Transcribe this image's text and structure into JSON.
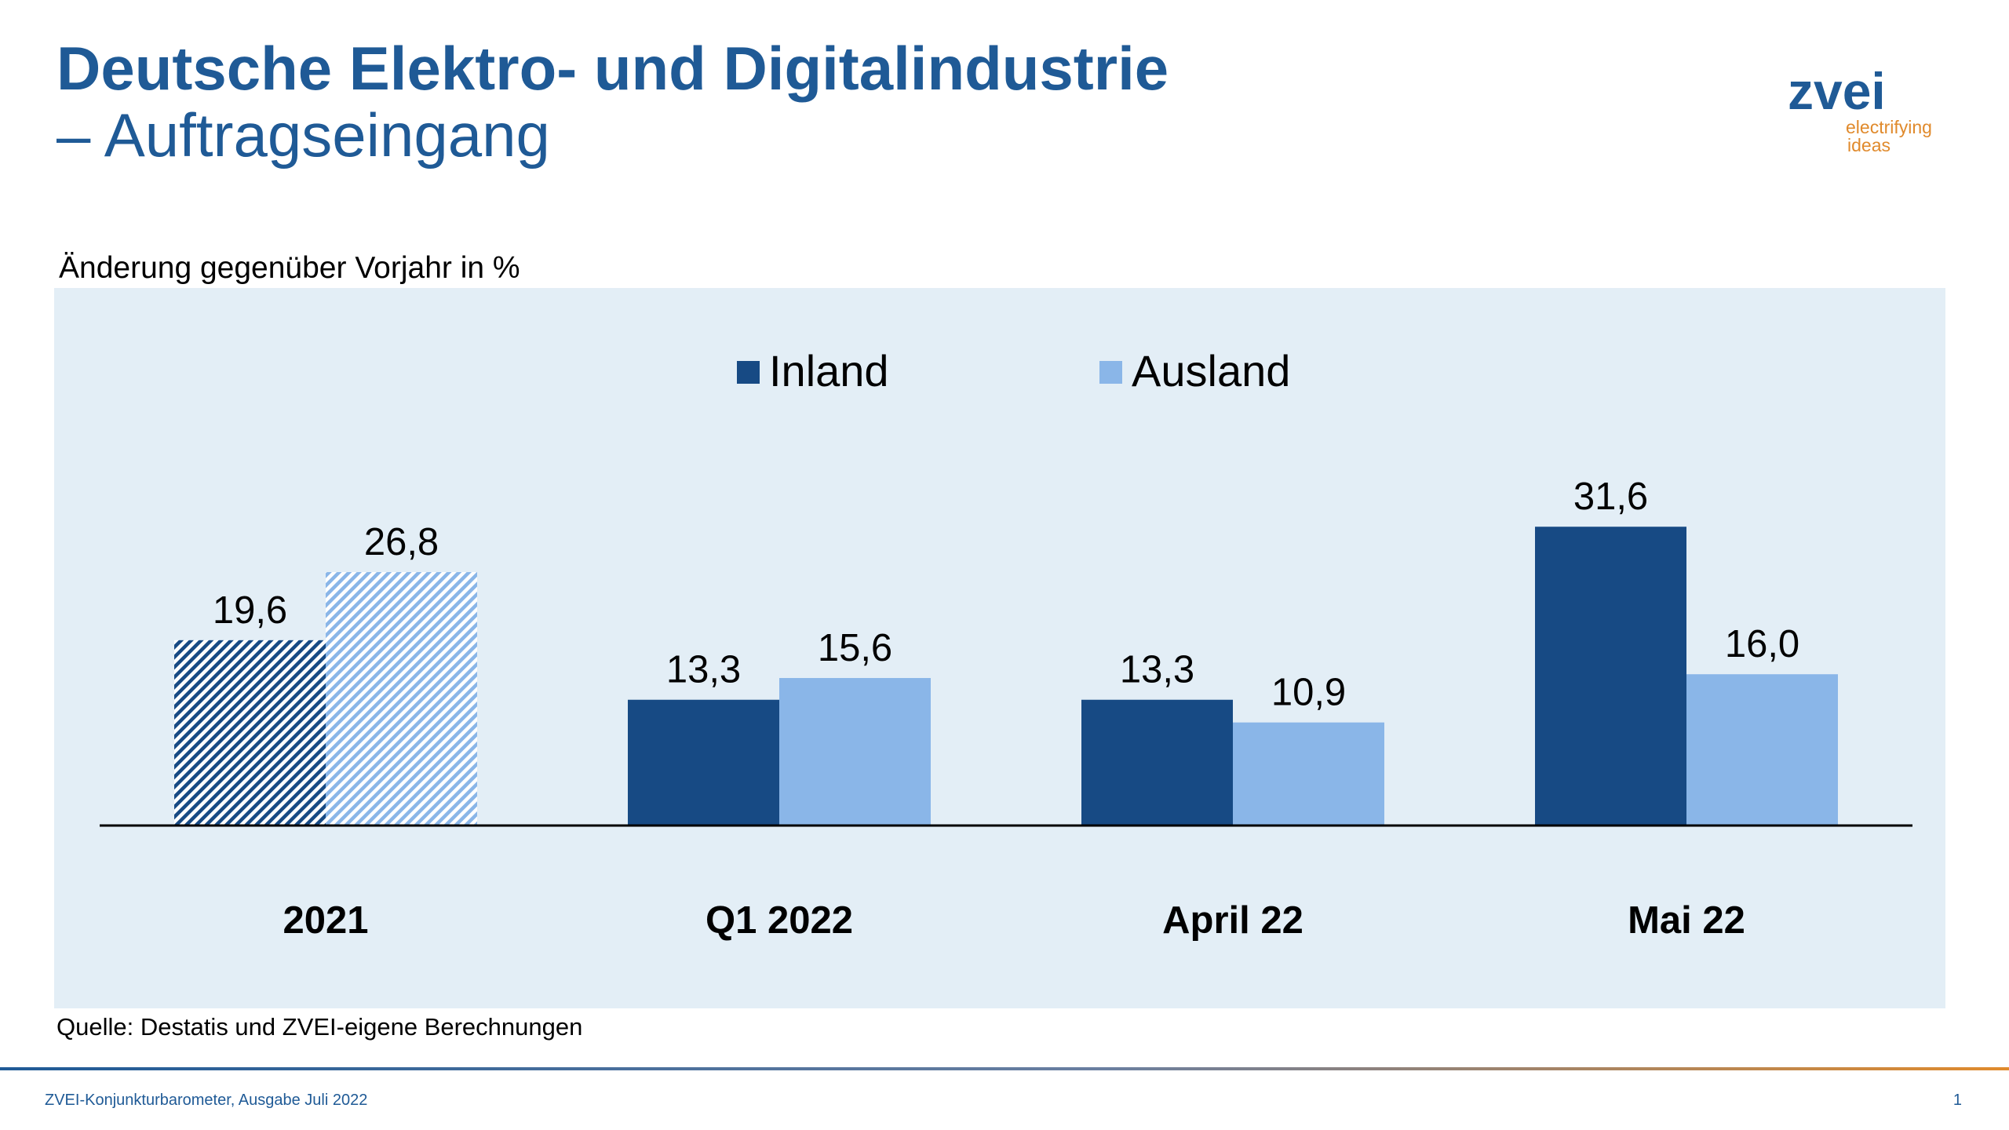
{
  "header": {
    "title": "Deutsche Elektro- und Digitalindustrie",
    "subtitle": "– Auftragseingang"
  },
  "logo": {
    "name": "zvei",
    "tagline": [
      "electrifying",
      "ideas"
    ]
  },
  "chart_data": {
    "type": "bar",
    "y_label": "Änderung gegenüber Vorjahr in %",
    "categories": [
      "2021",
      "Q1 2022",
      "April 22",
      "Mai 22"
    ],
    "series": [
      {
        "name": "Inland",
        "color": "#174a84",
        "values": [
          19.6,
          13.3,
          13.3,
          31.6
        ],
        "value_labels": [
          "19,6",
          "13,3",
          "13,3",
          "31,6"
        ],
        "hatch": [
          true,
          false,
          false,
          false
        ]
      },
      {
        "name": "Ausland",
        "color": "#8ab6e8",
        "values": [
          26.8,
          15.6,
          10.9,
          16.0
        ],
        "value_labels": [
          "26,8",
          "15,6",
          "10,9",
          "16,0"
        ],
        "hatch": [
          true,
          false,
          false,
          false
        ]
      }
    ],
    "legend": "top",
    "background": "#e3eef6",
    "source": "Quelle: Destatis und ZVEI-eigene Berechnungen"
  },
  "footer": {
    "text": "ZVEI-Konjunkturbarometer, Ausgabe Juli 2022",
    "page": "1"
  }
}
